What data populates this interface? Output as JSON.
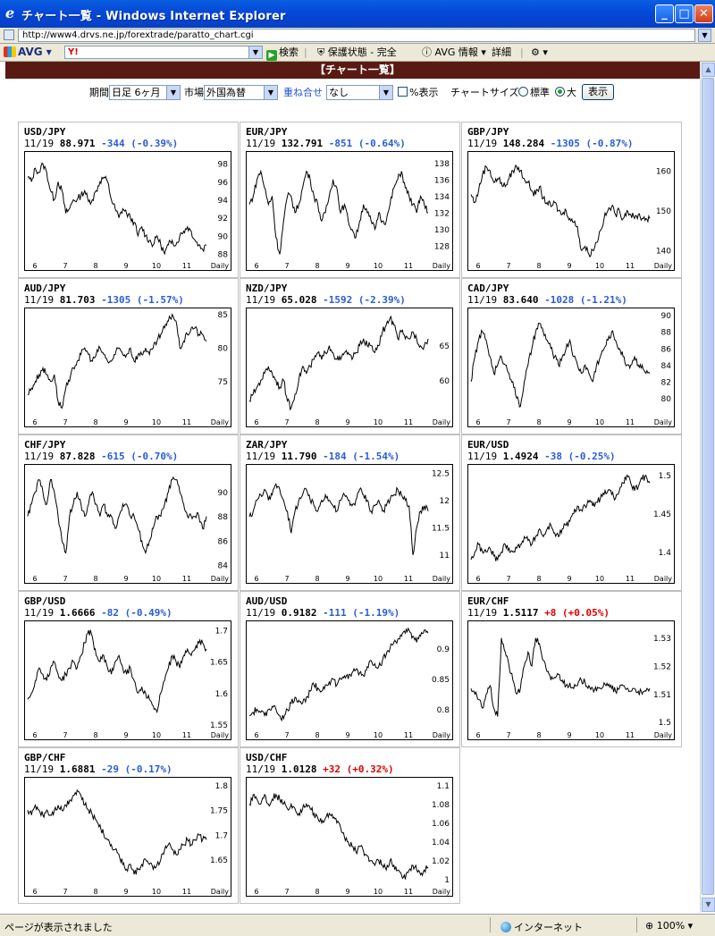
{
  "window": {
    "title": "チャート一覧 - Windows Internet Explorer",
    "minimize": "_",
    "maximize": "□",
    "close": "✕"
  },
  "address": {
    "url": "http://www4.drvs.ne.jp/forextrade/paratto_chart.cgi"
  },
  "toolbar": {
    "avg_label": "AVG",
    "search_logo": "Y!",
    "search_button": "検索",
    "safe_label": "保護状態 - 完全",
    "avg_info": "AVG 情報",
    "details": "詳細"
  },
  "page": {
    "header": "【チャート一覧】"
  },
  "controls": {
    "period_label": "期間",
    "period_value": "日足 6ヶ月",
    "market_label": "市場",
    "market_value": "外国為替",
    "overlay_link": "重ね合せ",
    "overlay_value": "なし",
    "percent_label": "%表示",
    "chart_size_label": "チャートサイズ",
    "size_standard": "標準",
    "size_large": "大",
    "show_button": "表示"
  },
  "x_axis_labels": [
    "6",
    "7",
    "8",
    "9",
    "10",
    "11"
  ],
  "x_axis_suffix": "Daily",
  "chart_data": [
    {
      "type": "line",
      "title": "USD/JPY",
      "date": "11/19",
      "price": "88.971",
      "change": "-344",
      "change_pct": "(-0.39%)",
      "up": false,
      "y_ticks": [
        98,
        96,
        94,
        92,
        90,
        88
      ],
      "ylim": [
        87.5,
        99
      ],
      "points": [
        96.5,
        96,
        97.5,
        97,
        98,
        97,
        95,
        94,
        96,
        95,
        92.5,
        93,
        94,
        94,
        94.5,
        95,
        93.8,
        94,
        95,
        96,
        96.5,
        96,
        94,
        93,
        92,
        93,
        92.5,
        92,
        91.5,
        90,
        91,
        90,
        89.5,
        89,
        90,
        89,
        88,
        89,
        89.5,
        89,
        90,
        90.5,
        91,
        90.5,
        89.5,
        89,
        88.5,
        89
      ]
    },
    {
      "type": "line",
      "title": "EUR/JPY",
      "date": "11/19",
      "price": "132.791",
      "change": "-851",
      "change_pct": "(-0.64%)",
      "up": false,
      "y_ticks": [
        138,
        136,
        134,
        132,
        130,
        128
      ],
      "ylim": [
        126.5,
        139
      ],
      "points": [
        133,
        134,
        136,
        137,
        135,
        133,
        134,
        129,
        127,
        131,
        134,
        134,
        132,
        133,
        135,
        137,
        136,
        134,
        133,
        131,
        132,
        134,
        136,
        135,
        132,
        133,
        131,
        130,
        129,
        131,
        133,
        132,
        131,
        130,
        132,
        131,
        131,
        133,
        135,
        136,
        137,
        135,
        134,
        133,
        132,
        134,
        133,
        132
      ]
    },
    {
      "type": "line",
      "title": "GBP/JPY",
      "date": "11/19",
      "price": "148.284",
      "change": "-1305",
      "change_pct": "(-0.87%)",
      "up": false,
      "y_ticks": [
        160,
        150,
        140
      ],
      "ylim": [
        138,
        164
      ],
      "points": [
        154,
        152,
        155,
        159,
        161,
        160,
        157,
        158,
        157,
        156,
        158,
        160,
        161,
        160,
        158,
        157,
        155,
        154,
        156,
        153,
        152,
        151,
        152,
        150,
        149,
        150,
        148,
        147,
        146,
        140,
        141,
        139,
        140,
        142,
        145,
        148,
        150,
        151,
        149,
        150,
        148,
        150,
        149,
        148,
        149,
        148,
        148,
        148
      ]
    },
    {
      "type": "line",
      "title": "AUD/JPY",
      "date": "11/19",
      "price": "81.703",
      "change": "-1305",
      "change_pct": "(-1.57%)",
      "up": false,
      "y_ticks": [
        85,
        80,
        75
      ],
      "ylim": [
        70,
        85.5
      ],
      "points": [
        73,
        74,
        75,
        76,
        77,
        76,
        75,
        76,
        72,
        71,
        74,
        75,
        77,
        78,
        79,
        80,
        79,
        78,
        79,
        80,
        79,
        78,
        78,
        79,
        80,
        79,
        79,
        80,
        78,
        79,
        79,
        80,
        79,
        80,
        81,
        82,
        83,
        84,
        85,
        84,
        80,
        81,
        82,
        83,
        83,
        82,
        82,
        81
      ]
    },
    {
      "type": "line",
      "title": "NZD/JPY",
      "date": "11/19",
      "price": "65.028",
      "change": "-1592",
      "change_pct": "(-2.39%)",
      "up": false,
      "y_ticks": [
        65,
        60
      ],
      "ylim": [
        55,
        70
      ],
      "points": [
        57,
        58,
        59,
        60,
        61,
        62,
        61,
        60,
        59,
        60,
        57,
        56,
        58,
        60,
        62,
        61,
        62,
        63,
        64,
        63,
        64,
        65,
        64,
        63,
        63,
        64,
        64,
        63,
        64,
        65,
        66,
        65,
        65,
        64,
        65,
        67,
        68,
        69,
        68,
        66,
        67,
        66,
        66,
        67,
        66,
        65,
        65,
        66
      ]
    },
    {
      "type": "line",
      "title": "CAD/JPY",
      "date": "11/19",
      "price": "83.640",
      "change": "-1028",
      "change_pct": "(-1.21%)",
      "up": false,
      "y_ticks": [
        90,
        88,
        86,
        84,
        82,
        80
      ],
      "ylim": [
        78,
        90.5
      ],
      "points": [
        82,
        85,
        87,
        88,
        87,
        85,
        83,
        84,
        85,
        84,
        83,
        82,
        80,
        79,
        82,
        84,
        86,
        88,
        89,
        88,
        87,
        86,
        85,
        84,
        85,
        86,
        87,
        85,
        84,
        83,
        84,
        83,
        82,
        84,
        85,
        86,
        87,
        88,
        87,
        86,
        85,
        84,
        84,
        85,
        84,
        84,
        83,
        83
      ]
    },
    {
      "type": "line",
      "title": "CHF/JPY",
      "date": "11/19",
      "price": "87.828",
      "change": "-615",
      "change_pct": "(-0.70%)",
      "up": false,
      "y_ticks": [
        90,
        88,
        86,
        84
      ],
      "ylim": [
        83.5,
        92
      ],
      "points": [
        88,
        89,
        90,
        91,
        90,
        89,
        91,
        90,
        88,
        86,
        85,
        88,
        89,
        90,
        89,
        88,
        89,
        90,
        89,
        88,
        89,
        88,
        88,
        87,
        88,
        89,
        89,
        88,
        88,
        87,
        86,
        85,
        86,
        87,
        88,
        88,
        89,
        90,
        91,
        91,
        90,
        89,
        88,
        88,
        88,
        88,
        87,
        88
      ]
    },
    {
      "type": "line",
      "title": "ZAR/JPY",
      "date": "11/19",
      "price": "11.790",
      "change": "-184",
      "change_pct": "(-1.54%)",
      "up": false,
      "y_ticks": [
        12.5,
        12,
        11.5,
        11
      ],
      "ylim": [
        10.7,
        12.6
      ],
      "points": [
        11.7,
        11.8,
        12,
        12.1,
        12.2,
        12,
        12.1,
        12.3,
        12.2,
        12,
        11.8,
        11.4,
        11.8,
        12,
        12.1,
        12.2,
        12,
        11.9,
        11.8,
        12,
        12.1,
        12,
        11.9,
        11.8,
        12,
        12.1,
        12,
        11.9,
        12,
        12.2,
        12.1,
        12,
        11.8,
        11.9,
        12,
        11.8,
        11.9,
        12,
        12.1,
        12.2,
        12.1,
        12,
        11.9,
        11,
        11.5,
        11.8,
        11.9,
        11.8
      ]
    },
    {
      "type": "line",
      "title": "EUR/USD",
      "date": "11/19",
      "price": "1.4924",
      "change": "-38",
      "change_pct": "(-0.25%)",
      "up": false,
      "y_ticks": [
        1.5,
        1.45,
        1.4
      ],
      "ylim": [
        1.375,
        1.51
      ],
      "points": [
        1.39,
        1.4,
        1.41,
        1.4,
        1.4,
        1.405,
        1.395,
        1.39,
        1.4,
        1.41,
        1.405,
        1.4,
        1.405,
        1.41,
        1.42,
        1.415,
        1.41,
        1.42,
        1.43,
        1.42,
        1.43,
        1.435,
        1.425,
        1.42,
        1.43,
        1.435,
        1.44,
        1.45,
        1.46,
        1.455,
        1.46,
        1.465,
        1.46,
        1.465,
        1.47,
        1.475,
        1.48,
        1.475,
        1.47,
        1.48,
        1.49,
        1.5,
        1.49,
        1.48,
        1.485,
        1.495,
        1.5,
        1.49
      ]
    },
    {
      "type": "line",
      "title": "GBP/USD",
      "date": "11/19",
      "price": "1.6666",
      "change": "-82",
      "change_pct": "(-0.49%)",
      "up": false,
      "y_ticks": [
        1.7,
        1.65,
        1.6,
        1.55
      ],
      "ylim": [
        1.545,
        1.71
      ],
      "points": [
        1.59,
        1.6,
        1.62,
        1.64,
        1.63,
        1.62,
        1.64,
        1.65,
        1.63,
        1.62,
        1.63,
        1.64,
        1.65,
        1.64,
        1.66,
        1.68,
        1.7,
        1.69,
        1.66,
        1.65,
        1.66,
        1.64,
        1.63,
        1.65,
        1.66,
        1.64,
        1.63,
        1.64,
        1.62,
        1.6,
        1.61,
        1.6,
        1.59,
        1.58,
        1.57,
        1.6,
        1.62,
        1.64,
        1.66,
        1.65,
        1.64,
        1.66,
        1.67,
        1.66,
        1.67,
        1.68,
        1.68,
        1.67
      ]
    },
    {
      "type": "line",
      "title": "AUD/USD",
      "date": "11/19",
      "price": "0.9182",
      "change": "-111",
      "change_pct": "(-1.19%)",
      "up": false,
      "y_ticks": [
        0.9,
        0.85,
        0.8
      ],
      "ylim": [
        0.77,
        0.94
      ],
      "points": [
        0.79,
        0.795,
        0.8,
        0.795,
        0.79,
        0.8,
        0.805,
        0.8,
        0.79,
        0.785,
        0.8,
        0.81,
        0.82,
        0.815,
        0.81,
        0.82,
        0.83,
        0.84,
        0.835,
        0.83,
        0.84,
        0.845,
        0.85,
        0.84,
        0.85,
        0.855,
        0.85,
        0.86,
        0.865,
        0.86,
        0.855,
        0.87,
        0.88,
        0.875,
        0.87,
        0.88,
        0.89,
        0.9,
        0.91,
        0.915,
        0.92,
        0.925,
        0.93,
        0.92,
        0.91,
        0.92,
        0.93,
        0.925
      ]
    },
    {
      "type": "line",
      "title": "EUR/CHF",
      "date": "11/19",
      "price": "1.5117",
      "change": "+8",
      "change_pct": "(+0.05%)",
      "up": true,
      "y_ticks": [
        1.53,
        1.52,
        1.51,
        1.5
      ],
      "ylim": [
        1.498,
        1.535
      ],
      "points": [
        1.512,
        1.51,
        1.508,
        1.505,
        1.51,
        1.513,
        1.505,
        1.502,
        1.53,
        1.525,
        1.52,
        1.515,
        1.51,
        1.512,
        1.52,
        1.525,
        1.52,
        1.53,
        1.528,
        1.522,
        1.518,
        1.515,
        1.516,
        1.517,
        1.515,
        1.513,
        1.514,
        1.512,
        1.513,
        1.515,
        1.514,
        1.513,
        1.512,
        1.511,
        1.512,
        1.514,
        1.513,
        1.512,
        1.511,
        1.512,
        1.513,
        1.512,
        1.511,
        1.512,
        1.511,
        1.51,
        1.511,
        1.512
      ]
    },
    {
      "type": "line",
      "title": "GBP/CHF",
      "date": "11/19",
      "price": "1.6881",
      "change": "-29",
      "change_pct": "(-0.17%)",
      "up": false,
      "y_ticks": [
        1.8,
        1.75,
        1.7,
        1.65
      ],
      "ylim": [
        1.6,
        1.81
      ],
      "points": [
        1.75,
        1.74,
        1.76,
        1.75,
        1.74,
        1.75,
        1.74,
        1.75,
        1.76,
        1.75,
        1.76,
        1.77,
        1.78,
        1.79,
        1.78,
        1.76,
        1.75,
        1.74,
        1.73,
        1.72,
        1.7,
        1.69,
        1.68,
        1.67,
        1.66,
        1.64,
        1.63,
        1.64,
        1.62,
        1.63,
        1.64,
        1.65,
        1.64,
        1.63,
        1.64,
        1.65,
        1.67,
        1.68,
        1.67,
        1.66,
        1.67,
        1.68,
        1.69,
        1.68,
        1.69,
        1.7,
        1.69,
        1.69
      ]
    },
    {
      "type": "line",
      "title": "USD/CHF",
      "date": "11/19",
      "price": "1.0128",
      "change": "+32",
      "change_pct": "(+0.32%)",
      "up": true,
      "y_ticks": [
        1.1,
        1.08,
        1.06,
        1.04,
        1.02,
        1
      ],
      "ylim": [
        0.995,
        1.105
      ],
      "points": [
        1.08,
        1.09,
        1.085,
        1.08,
        1.09,
        1.08,
        1.085,
        1.09,
        1.085,
        1.08,
        1.075,
        1.08,
        1.075,
        1.07,
        1.075,
        1.08,
        1.075,
        1.07,
        1.065,
        1.06,
        1.065,
        1.07,
        1.065,
        1.06,
        1.055,
        1.045,
        1.04,
        1.035,
        1.03,
        1.035,
        1.03,
        1.025,
        1.02,
        1.015,
        1.02,
        1.015,
        1.01,
        1.02,
        1.015,
        1.01,
        1.005,
        1.0,
        1.01,
        1.015,
        1.01,
        1.005,
        1.01,
        1.013
      ]
    }
  ],
  "status": {
    "text": "ページが表示されました",
    "zone": "インターネット",
    "zoom": "100%"
  }
}
